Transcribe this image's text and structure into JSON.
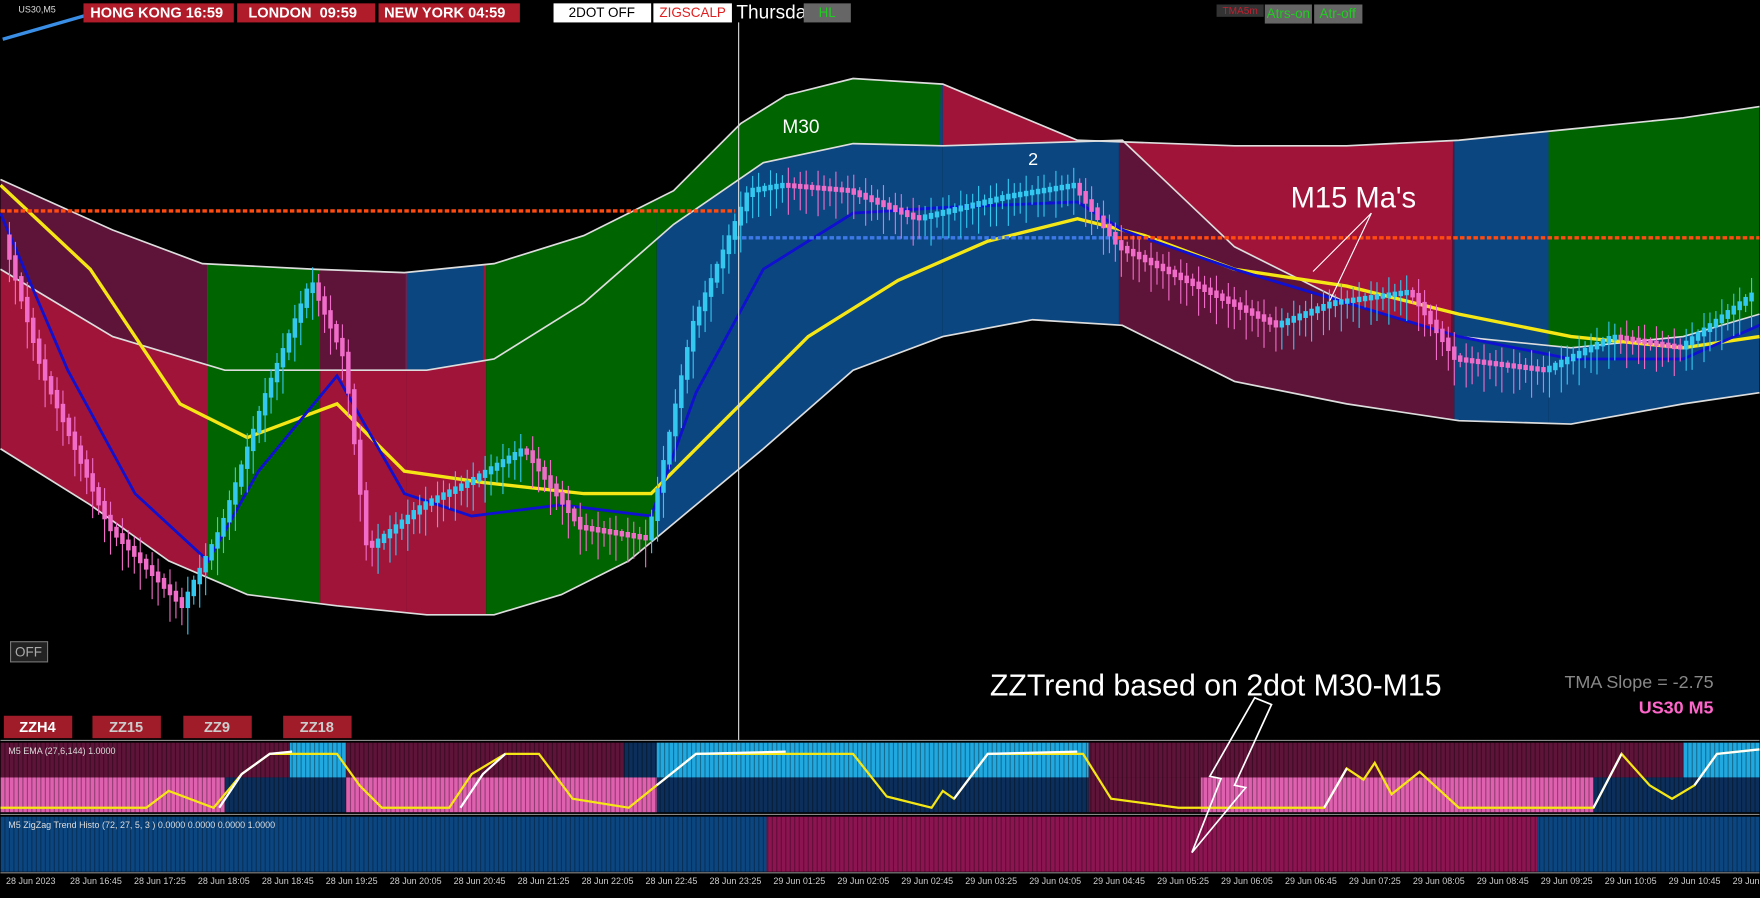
{
  "header": {
    "symbol": "US30,M5",
    "clocks": [
      "HONG KONG 16:59",
      "LONDON  09:59",
      "NEW YORK 04:59"
    ],
    "buttons": [
      "2DOT OFF",
      "ZIGSCALP",
      "HL"
    ],
    "day": "Thursda",
    "right_buttons": [
      "TMA5m",
      "Atrs-on",
      "Atr-off"
    ]
  },
  "chart": {
    "labels": [
      "M30",
      "2",
      "M15 Ma's"
    ],
    "off_button": "OFF",
    "zz_buttons": [
      "ZZH4",
      "ZZ15",
      "ZZ9",
      "ZZ18"
    ],
    "note": "ZZTrend based on 2dot M30-M15",
    "slope": "TMA Slope = -2.75",
    "instrument": "US30 M5"
  },
  "panels": {
    "ema": "M5 EMA (27,6,144) 1.0000",
    "zigzag": "M5 ZigZag Trend Histo (72, 27, 5, 3 ) 0.0000 0.0000 0.0000 1.0000"
  },
  "time_axis": [
    "28 Jun 2023",
    "28 Jun 16:45",
    "28 Jun 17:25",
    "28 Jun 18:05",
    "28 Jun 18:45",
    "28 Jun 19:25",
    "28 Jun 20:05",
    "28 Jun 20:45",
    "28 Jun 21:25",
    "28 Jun 22:05",
    "28 Jun 22:45",
    "28 Jun 23:25",
    "29 Jun 01:25",
    "29 Jun 02:05",
    "29 Jun 02:45",
    "29 Jun 03:25",
    "29 Jun 04:05",
    "29 Jun 04:45",
    "29 Jun 05:25",
    "29 Jun 06:05",
    "29 Jun 06:45",
    "29 Jun 07:25",
    "29 Jun 08:05",
    "29 Jun 08:45",
    "29 Jun 09:25",
    "29 Jun 10:05",
    "29 Jun 10:45",
    "29 Jun"
  ]
}
